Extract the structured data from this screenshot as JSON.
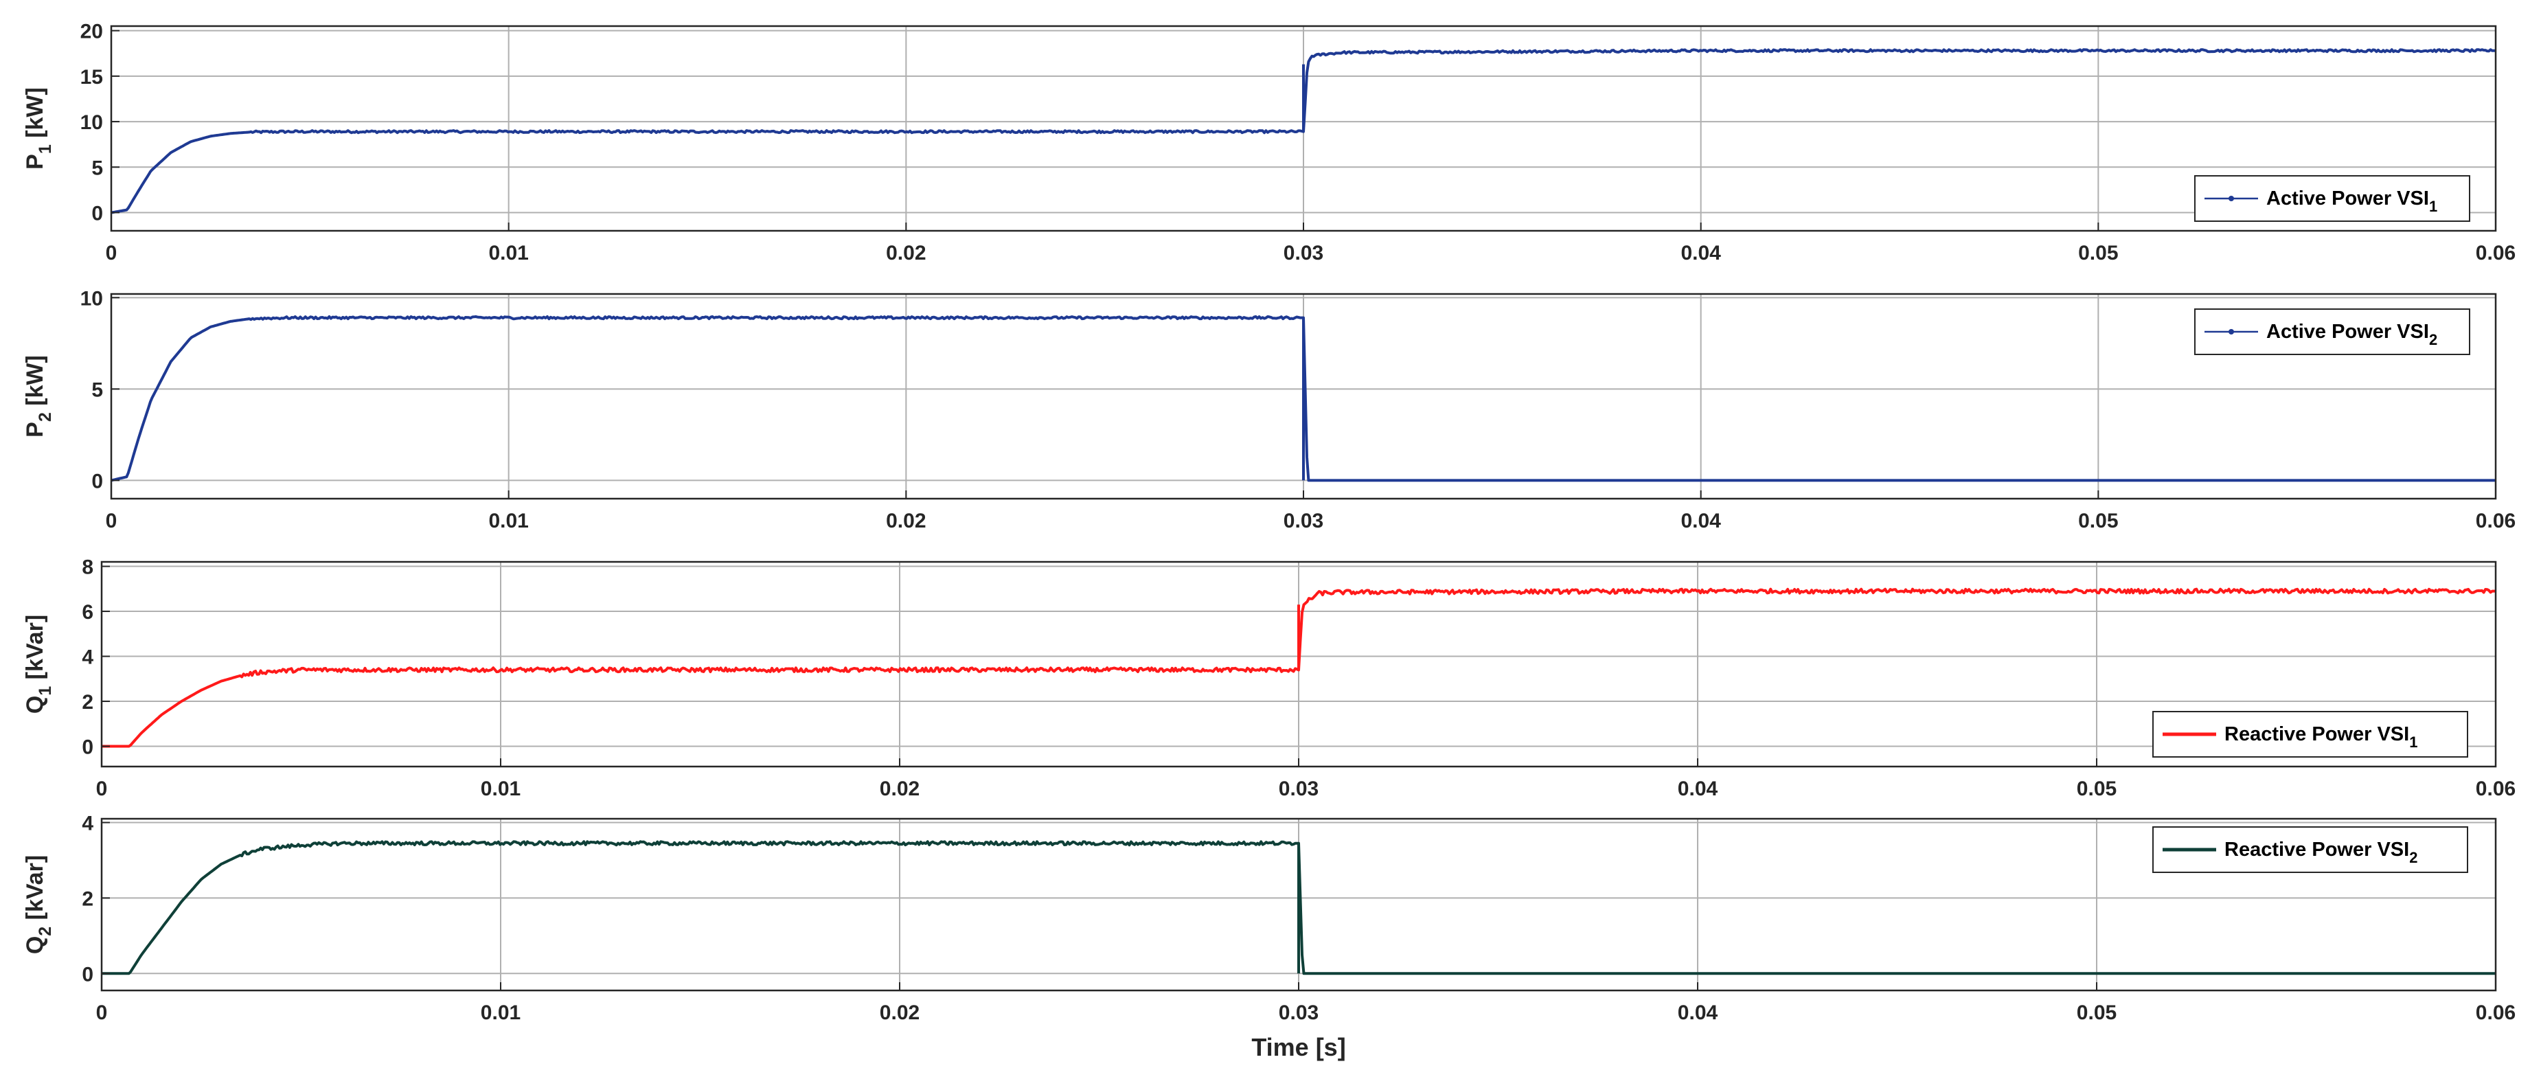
{
  "chart_data": [
    {
      "type": "line",
      "ylabel_main": "P",
      "ylabel_sub": "1",
      "ylabel_unit": "[kW]",
      "xlabel": "",
      "xlim": [
        0,
        0.06
      ],
      "ylim": [
        -2,
        20.5
      ],
      "xticks": [
        0,
        0.01,
        0.02,
        0.03,
        0.04,
        0.05,
        0.06
      ],
      "xtick_labels": [
        "0",
        "0.01",
        "0.02",
        "0.03",
        "0.04",
        "0.05",
        "0.06"
      ],
      "yticks": [
        0,
        5,
        10,
        15,
        20
      ],
      "ytick_labels": [
        "0",
        "5",
        "10",
        "15",
        "20"
      ],
      "grid": true,
      "legend_position": "bottom-right",
      "series": [
        {
          "name_main": "Active Power VSI",
          "name_sub": "1",
          "color": "#1f3a93",
          "marker": true,
          "x": [
            0,
            0.0004,
            0.0007,
            0.001,
            0.0015,
            0.002,
            0.0025,
            0.003,
            0.0035,
            0.0045,
            0.01,
            0.02,
            0.0299,
            0.03,
            0.0301,
            0.0302,
            0.0305,
            0.031,
            0.04,
            0.05,
            0.06
          ],
          "values": [
            0,
            0.3,
            2.5,
            4.6,
            6.6,
            7.8,
            8.4,
            8.7,
            8.85,
            8.9,
            8.9,
            8.9,
            8.9,
            8.9,
            16.3,
            17.2,
            17.4,
            17.6,
            17.8,
            17.8,
            17.8
          ],
          "noise": 0.12
        }
      ]
    },
    {
      "type": "line",
      "ylabel_main": "P",
      "ylabel_sub": "2",
      "ylabel_unit": "[kW]",
      "xlabel": "",
      "xlim": [
        0,
        0.06
      ],
      "ylim": [
        -1,
        10.2
      ],
      "xticks": [
        0,
        0.01,
        0.02,
        0.03,
        0.04,
        0.05,
        0.06
      ],
      "xtick_labels": [
        "0",
        "0.01",
        "0.02",
        "0.03",
        "0.04",
        "0.05",
        "0.06"
      ],
      "yticks": [
        0,
        5,
        10
      ],
      "ytick_labels": [
        "0",
        "5",
        "10"
      ],
      "grid": true,
      "legend_position": "top-right",
      "series": [
        {
          "name_main": "Active Power VSI",
          "name_sub": "2",
          "color": "#1f3a93",
          "marker": true,
          "x": [
            0,
            0.0004,
            0.0007,
            0.001,
            0.0015,
            0.002,
            0.0025,
            0.003,
            0.0035,
            0.0045,
            0.01,
            0.02,
            0.0299,
            0.03,
            0.0301,
            0.04,
            0.05,
            0.06
          ],
          "values": [
            0,
            0.2,
            2.4,
            4.4,
            6.5,
            7.8,
            8.4,
            8.7,
            8.85,
            8.9,
            8.9,
            8.9,
            8.9,
            8.9,
            0,
            0,
            0,
            0
          ],
          "noise": 0.06,
          "noise_until": 0.03
        }
      ]
    },
    {
      "type": "line",
      "ylabel_main": "Q",
      "ylabel_sub": "1",
      "ylabel_unit": "[kVar]",
      "xlabel": "",
      "xlim": [
        0,
        0.06
      ],
      "ylim": [
        -0.9,
        8.2
      ],
      "xticks": [
        0,
        0.01,
        0.02,
        0.03,
        0.04,
        0.05,
        0.06
      ],
      "xtick_labels": [
        "0",
        "0.01",
        "0.02",
        "0.03",
        "0.04",
        "0.05",
        "0.06"
      ],
      "yticks": [
        0,
        2,
        4,
        6,
        8
      ],
      "ytick_labels": [
        "0",
        "2",
        "4",
        "6",
        "8"
      ],
      "grid": true,
      "legend_position": "bottom-right",
      "series": [
        {
          "name_main": "Reactive Power VSI",
          "name_sub": "1",
          "color": "#ff1a1a",
          "marker": false,
          "x": [
            0,
            0.0007,
            0.001,
            0.0015,
            0.002,
            0.0025,
            0.003,
            0.0035,
            0.004,
            0.005,
            0.01,
            0.02,
            0.0299,
            0.03,
            0.0301,
            0.0305,
            0.031,
            0.04,
            0.05,
            0.06
          ],
          "values": [
            0,
            0,
            0.6,
            1.4,
            2.0,
            2.5,
            2.9,
            3.15,
            3.3,
            3.4,
            3.4,
            3.4,
            3.4,
            3.4,
            6.3,
            6.8,
            6.85,
            6.9,
            6.9,
            6.9
          ],
          "noise": 0.09
        }
      ]
    },
    {
      "type": "line",
      "ylabel_main": "Q",
      "ylabel_sub": "2",
      "ylabel_unit": "[kVar]",
      "xlabel": "Time [s]",
      "xlim": [
        0,
        0.06
      ],
      "ylim": [
        -0.45,
        4.1
      ],
      "xticks": [
        0,
        0.01,
        0.02,
        0.03,
        0.04,
        0.05,
        0.06
      ],
      "xtick_labels": [
        "0",
        "0.01",
        "0.02",
        "0.03",
        "0.04",
        "0.05",
        "0.06"
      ],
      "yticks": [
        0,
        2,
        4
      ],
      "ytick_labels": [
        "0",
        "2",
        "4"
      ],
      "grid": true,
      "legend_position": "top-right",
      "series": [
        {
          "name_main": "Reactive Power VSI",
          "name_sub": "2",
          "color": "#0f4038",
          "marker": false,
          "x": [
            0,
            0.0007,
            0.001,
            0.0015,
            0.002,
            0.0025,
            0.003,
            0.0035,
            0.004,
            0.005,
            0.006,
            0.01,
            0.02,
            0.0299,
            0.03,
            0.0301,
            0.04,
            0.05,
            0.06
          ],
          "values": [
            0,
            0,
            0.5,
            1.2,
            1.9,
            2.5,
            2.9,
            3.15,
            3.3,
            3.4,
            3.45,
            3.45,
            3.45,
            3.45,
            3.45,
            0,
            0,
            0,
            0
          ],
          "noise": 0.045,
          "noise_until": 0.03
        }
      ]
    }
  ],
  "colors": {
    "axis": "#262626",
    "grid": "#b0b0b0",
    "legend_border": "#262626"
  }
}
